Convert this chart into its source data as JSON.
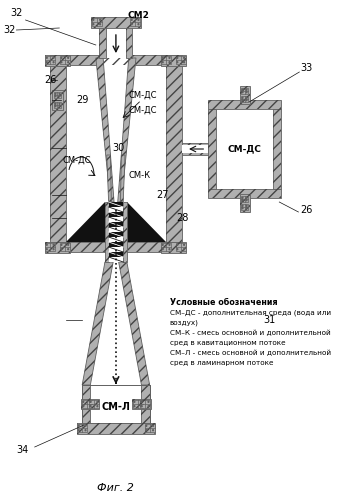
{
  "title": "Фиг. 2",
  "bg_color": "#ffffff",
  "legend_title": "Условные обозначения",
  "legend_lines": [
    "СМ–ДС - дополнительная среда (вода или",
    "воздух)",
    "СМ–К - смесь основной и дополнительной",
    "сред в кавитационном потоке",
    "СМ–Л - смесь основной и дополнительной",
    "сред в ламинарном потоке"
  ]
}
